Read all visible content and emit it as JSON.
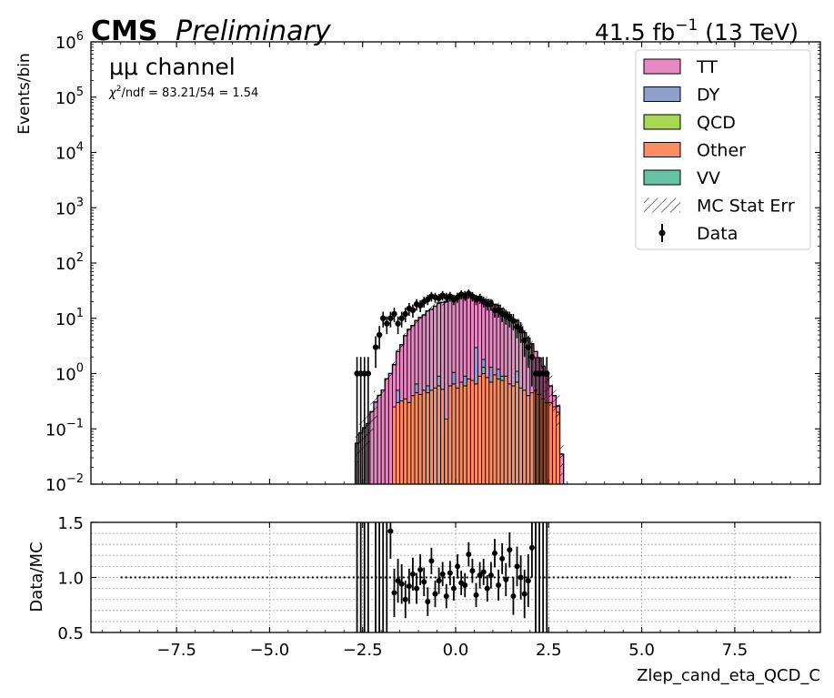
{
  "header": {
    "experiment": "CMS",
    "status": "Preliminary",
    "lumi_prefix": "41.5 fb",
    "lumi_exp": "−1",
    "lumi_suffix": " (13 TeV)"
  },
  "annotations": {
    "channel": "μμ channel",
    "chi2_symbol": "χ",
    "chi2_exp": "2",
    "chi2_text": "/ndf = 83.21/54 = 1.54"
  },
  "legend": {
    "placement": "top-right",
    "items": [
      {
        "label": "TT",
        "type": "box",
        "color": "#e78ac3"
      },
      {
        "label": "DY",
        "type": "box",
        "color": "#8da0cb"
      },
      {
        "label": "QCD",
        "type": "box",
        "color": "#a6d854"
      },
      {
        "label": "Other",
        "type": "box",
        "color": "#fc8d62"
      },
      {
        "label": "VV",
        "type": "box",
        "color": "#66c2a5"
      },
      {
        "label": "MC Stat Err",
        "type": "hatch",
        "color": "#000000"
      },
      {
        "label": "Data",
        "type": "marker",
        "color": "#000000"
      }
    ]
  },
  "chart_data": [
    {
      "type": "bar",
      "subtype": "stacked-histogram",
      "ylabel": "Events/bin",
      "xlim": [
        -9.8,
        9.8
      ],
      "ylim": [
        0.01,
        1000000
      ],
      "yscale": "log",
      "yticks": [
        {
          "value": 0.01,
          "base": "10",
          "exp": "−2"
        },
        {
          "value": 0.1,
          "base": "10",
          "exp": "−1"
        },
        {
          "value": 1,
          "base": "10",
          "exp": "0"
        },
        {
          "value": 10,
          "base": "10",
          "exp": "1"
        },
        {
          "value": 100,
          "base": "10",
          "exp": "2"
        },
        {
          "value": 1000,
          "base": "10",
          "exp": "3"
        },
        {
          "value": 10000,
          "base": "10",
          "exp": "4"
        },
        {
          "value": 100000,
          "base": "10",
          "exp": "5"
        },
        {
          "value": 1000000,
          "base": "10",
          "exp": "6"
        }
      ],
      "bin_width": 0.1,
      "bin_start": -2.7,
      "series": [
        {
          "name": "Other",
          "color": "#fc8d62",
          "values": [
            0.005,
            0.005,
            0.005,
            0.005,
            0.005,
            0.005,
            0.005,
            0.005,
            0.005,
            0.005,
            0.25,
            0.3,
            0.32,
            0.35,
            0.3,
            0.4,
            0.45,
            0.42,
            0.5,
            0.45,
            0.5,
            0.55,
            0.6,
            0.52,
            0.15,
            0.6,
            0.65,
            0.55,
            0.7,
            0.6,
            0.8,
            0.75,
            0.65,
            0.9,
            1.0,
            0.85,
            0.7,
            0.95,
            0.8,
            0.75,
            0.9,
            0.65,
            0.6,
            0.7,
            0.55,
            0.5,
            0.4,
            0.45,
            0.5,
            0.42,
            0.35,
            0.3,
            0.3,
            0.25,
            0.2,
            0.005
          ]
        },
        {
          "name": "VV",
          "color": "#66c2a5",
          "values": [
            0,
            0,
            0,
            0,
            0,
            0,
            0,
            0,
            0,
            0,
            0,
            0,
            0,
            0,
            0,
            0,
            0,
            0,
            0,
            0,
            0,
            0,
            0,
            0,
            0,
            0,
            0,
            0,
            0,
            0,
            0,
            0,
            0,
            0,
            0.3,
            0,
            0,
            0,
            0,
            0.15,
            0,
            0,
            0,
            0,
            0,
            0,
            0,
            0,
            0,
            0,
            0,
            0,
            0,
            0,
            0,
            0
          ]
        },
        {
          "name": "DY",
          "color": "#8da0cb",
          "values": [
            0,
            0,
            0,
            0,
            0,
            0,
            0,
            0,
            0,
            0,
            0,
            0.2,
            0,
            0,
            0,
            0,
            0.2,
            0,
            0,
            0.15,
            0,
            0,
            0.3,
            0,
            0,
            0,
            0.4,
            0,
            0,
            0.3,
            0,
            0,
            2.3,
            0,
            0.5,
            0,
            0.6,
            0,
            0.4,
            0,
            0,
            0,
            0,
            0.4,
            0,
            0,
            0,
            0,
            0,
            0,
            0,
            0,
            0,
            0,
            0,
            0
          ]
        },
        {
          "name": "TT",
          "color": "#e78ac3",
          "values": [
            0.05,
            0.08,
            0.1,
            0.12,
            0.2,
            0.3,
            0.4,
            0.5,
            0.8,
            1.0,
            1.2,
            2.0,
            3.0,
            4.5,
            6.0,
            7.0,
            8.5,
            10.0,
            11.0,
            13.0,
            14.0,
            16.0,
            18.0,
            19.0,
            20.0,
            22.0,
            21.0,
            23.0,
            24.0,
            22.0,
            25.0,
            23.0,
            22.0,
            24.0,
            20.0,
            21.0,
            19.0,
            17.0,
            16.0,
            14.0,
            12.0,
            11.0,
            9.0,
            8.0,
            6.5,
            5.0,
            4.0,
            3.0,
            2.0,
            1.5,
            1.0,
            0.6,
            0.3,
            0.15,
            0.06,
            0.03
          ]
        }
      ],
      "data": {
        "x": [
          -2.65,
          -2.55,
          -2.45,
          -2.35,
          -2.15,
          -2.05,
          -1.95,
          -1.85,
          -1.75,
          -1.65,
          -1.55,
          -1.45,
          -1.35,
          -1.25,
          -1.15,
          -1.05,
          -0.95,
          -0.85,
          -0.75,
          -0.65,
          -0.55,
          -0.45,
          -0.35,
          -0.25,
          -0.15,
          -0.05,
          0.05,
          0.15,
          0.25,
          0.35,
          0.45,
          0.55,
          0.65,
          0.75,
          0.85,
          0.95,
          1.05,
          1.15,
          1.25,
          1.35,
          1.45,
          1.55,
          1.65,
          1.75,
          1.85,
          1.95,
          2.05,
          2.15,
          2.25,
          2.35,
          2.45
        ],
        "y": [
          1,
          1,
          1,
          1,
          3,
          5,
          10,
          8,
          10,
          12,
          8,
          10,
          12,
          15,
          14,
          18,
          17,
          20,
          22,
          25,
          24,
          23,
          26,
          24,
          25,
          22,
          24,
          27,
          26,
          28,
          25,
          22,
          23,
          20,
          18,
          18,
          14,
          14,
          12,
          11,
          10,
          9,
          7,
          6,
          4,
          3,
          2,
          1,
          1,
          1,
          1
        ]
      }
    },
    {
      "type": "scatter",
      "subtype": "ratio",
      "ylabel": "Data/MC",
      "xlabel": "Zlep_cand_eta_QCD_C",
      "xlim": [
        -9.8,
        9.8
      ],
      "ylim": [
        0.5,
        1.5
      ],
      "yticks": [
        "0.5",
        "1.0",
        "1.5"
      ],
      "xticks": [
        "−7.5",
        "−5.0",
        "−2.5",
        "0.0",
        "2.5",
        "5.0",
        "7.5"
      ],
      "xtick_values": [
        -7.5,
        -5.0,
        -2.5,
        0.0,
        2.5,
        5.0,
        7.5
      ],
      "grid": true,
      "reference_line": 1.0,
      "reference_xlim": [
        -9.0,
        9.0
      ],
      "x": [
        -1.75,
        -1.65,
        -1.55,
        -1.45,
        -1.35,
        -1.25,
        -1.15,
        -1.05,
        -0.95,
        -0.85,
        -0.75,
        -0.65,
        -0.55,
        -0.45,
        -0.35,
        -0.25,
        -0.15,
        -0.05,
        0.05,
        0.15,
        0.25,
        0.35,
        0.45,
        0.55,
        0.65,
        0.75,
        0.85,
        0.95,
        1.05,
        1.15,
        1.25,
        1.35,
        1.45,
        1.55,
        1.65,
        1.75,
        1.85,
        1.95,
        2.05
      ],
      "y": [
        1.42,
        0.86,
        0.97,
        0.94,
        0.8,
        0.92,
        1.03,
        0.9,
        1.07,
        0.96,
        0.78,
        1.15,
        0.85,
        0.97,
        1.03,
        0.83,
        1.04,
        0.9,
        1.1,
        0.95,
        0.93,
        1.21,
        1.06,
        0.84,
        1.02,
        1.05,
        0.9,
        1.02,
        1.22,
        0.93,
        1.17,
        0.98,
        1.25,
        0.83,
        1.1,
        1.0,
        0.85,
        0.97,
        1.27
      ],
      "err": [
        0.25,
        0.22,
        0.2,
        0.18,
        0.17,
        0.16,
        0.15,
        0.14,
        0.14,
        0.13,
        0.13,
        0.12,
        0.12,
        0.12,
        0.11,
        0.11,
        0.11,
        0.11,
        0.11,
        0.11,
        0.11,
        0.11,
        0.11,
        0.11,
        0.12,
        0.12,
        0.12,
        0.12,
        0.13,
        0.14,
        0.14,
        0.15,
        0.16,
        0.17,
        0.18,
        0.2,
        0.22,
        0.24,
        0.27
      ]
    }
  ]
}
